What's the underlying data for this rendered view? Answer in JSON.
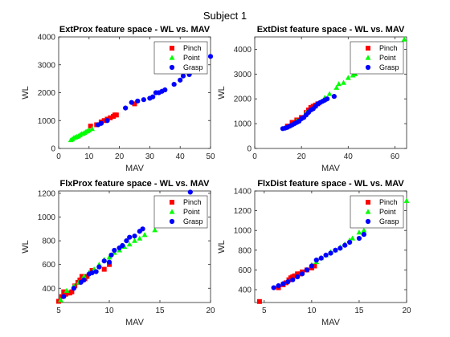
{
  "figure": {
    "title": "Subject 1",
    "colors": {
      "Pinch": "#ff0000",
      "Point": "#00ff00",
      "Grasp": "#0000ff"
    }
  },
  "chart_data": [
    {
      "type": "scatter",
      "title": "ExtProx feature space - WL vs. MAV",
      "xlabel": "MAV",
      "ylabel": "WL",
      "xlim": [
        0,
        50
      ],
      "ylim": [
        0,
        4000
      ],
      "xticks": [
        0,
        10,
        20,
        30,
        40,
        50
      ],
      "yticks": [
        0,
        1000,
        2000,
        3000,
        4000
      ],
      "legend": "top-right",
      "series": [
        {
          "name": "Pinch",
          "marker": "square",
          "points": [
            [
              10.5,
              800
            ],
            [
              12.5,
              850
            ],
            [
              14,
              950
            ],
            [
              15,
              1000
            ],
            [
              16,
              1050
            ],
            [
              17,
              1100
            ],
            [
              18,
              1150
            ],
            [
              18.5,
              1200
            ],
            [
              19,
              1200
            ],
            [
              25,
              1600
            ]
          ]
        },
        {
          "name": "Point",
          "marker": "triangle",
          "points": [
            [
              4,
              300
            ],
            [
              4.5,
              330
            ],
            [
              5,
              380
            ],
            [
              5.5,
              400
            ],
            [
              6,
              420
            ],
            [
              6.5,
              440
            ],
            [
              7,
              480
            ],
            [
              7.5,
              520
            ],
            [
              8,
              530
            ],
            [
              8.5,
              560
            ],
            [
              9,
              600
            ],
            [
              9.5,
              620
            ],
            [
              10,
              650
            ],
            [
              11,
              700
            ]
          ]
        },
        {
          "name": "Grasp",
          "marker": "circle",
          "points": [
            [
              13,
              850
            ],
            [
              14,
              900
            ],
            [
              16,
              1000
            ],
            [
              22,
              1450
            ],
            [
              24,
              1650
            ],
            [
              26,
              1700
            ],
            [
              28,
              1750
            ],
            [
              30,
              1800
            ],
            [
              31,
              1850
            ],
            [
              32,
              2000
            ],
            [
              33,
              2000
            ],
            [
              34,
              2050
            ],
            [
              35,
              2100
            ],
            [
              38,
              2300
            ],
            [
              40,
              2450
            ],
            [
              41,
              2600
            ],
            [
              43,
              2650
            ],
            [
              45,
              2850
            ],
            [
              46,
              2900
            ],
            [
              50,
              3300
            ]
          ]
        }
      ]
    },
    {
      "type": "scatter",
      "title": "ExtDist feature space - WL vs. MAV",
      "xlabel": "MAV",
      "ylabel": "WL",
      "xlim": [
        0,
        65
      ],
      "ylim": [
        0,
        4500
      ],
      "xticks": [
        0,
        20,
        40,
        60
      ],
      "yticks": [
        0,
        1000,
        2000,
        3000,
        4000
      ],
      "legend": "top-right",
      "series": [
        {
          "name": "Pinch",
          "marker": "square",
          "points": [
            [
              14,
              900
            ],
            [
              16,
              1050
            ],
            [
              18,
              1150
            ],
            [
              20,
              1250
            ],
            [
              22,
              1450
            ],
            [
              23,
              1550
            ],
            [
              24,
              1650
            ],
            [
              25,
              1700
            ],
            [
              26,
              1750
            ],
            [
              27,
              1800
            ]
          ]
        },
        {
          "name": "Point",
          "marker": "triangle",
          "points": [
            [
              18,
              1100
            ],
            [
              22,
              1450
            ],
            [
              26,
              1700
            ],
            [
              30,
              2050
            ],
            [
              32,
              2200
            ],
            [
              35,
              2450
            ],
            [
              36,
              2600
            ],
            [
              38,
              2650
            ],
            [
              40,
              2850
            ],
            [
              42,
              2950
            ],
            [
              43,
              3000
            ],
            [
              45,
              3100
            ],
            [
              50,
              3500
            ],
            [
              52,
              3600
            ],
            [
              54,
              3700
            ],
            [
              64,
              4400
            ]
          ]
        },
        {
          "name": "Grasp",
          "marker": "circle",
          "points": [
            [
              12,
              800
            ],
            [
              13,
              820
            ],
            [
              14,
              850
            ],
            [
              15,
              900
            ],
            [
              16,
              950
            ],
            [
              17,
              1000
            ],
            [
              18,
              1050
            ],
            [
              19,
              1100
            ],
            [
              20,
              1200
            ],
            [
              21,
              1250
            ],
            [
              22,
              1350
            ],
            [
              23,
              1450
            ],
            [
              24,
              1550
            ],
            [
              25,
              1600
            ],
            [
              26,
              1700
            ],
            [
              27,
              1800
            ],
            [
              28,
              1850
            ],
            [
              29,
              1900
            ],
            [
              30,
              1950
            ],
            [
              31,
              2000
            ],
            [
              34,
              2100
            ]
          ]
        }
      ]
    },
    {
      "type": "scatter",
      "title": "FlxProx feature space - WL vs. MAV",
      "xlabel": "MAV",
      "ylabel": "WL",
      "xlim": [
        5,
        20
      ],
      "ylim": [
        280,
        1220
      ],
      "xticks": [
        5,
        10,
        15,
        20
      ],
      "yticks": [
        400,
        600,
        800,
        1000,
        1200
      ],
      "legend": "top-right",
      "series": [
        {
          "name": "Pinch",
          "marker": "square",
          "points": [
            [
              5,
              290
            ],
            [
              5.3,
              330
            ],
            [
              5.5,
              370
            ],
            [
              5.7,
              350
            ],
            [
              5.9,
              360
            ],
            [
              6.1,
              360
            ],
            [
              6.3,
              370
            ],
            [
              6.6,
              420
            ],
            [
              6.9,
              450
            ],
            [
              7.1,
              470
            ],
            [
              7.3,
              500
            ],
            [
              7.6,
              480
            ],
            [
              7.8,
              500
            ],
            [
              8.3,
              550
            ],
            [
              9.5,
              560
            ],
            [
              10,
              600
            ]
          ]
        },
        {
          "name": "Point",
          "marker": "triangle",
          "points": [
            [
              5.2,
              300
            ],
            [
              5.8,
              380
            ],
            [
              6.5,
              420
            ],
            [
              7,
              450
            ],
            [
              7.5,
              500
            ],
            [
              8,
              530
            ],
            [
              8.5,
              560
            ],
            [
              9,
              600
            ],
            [
              9.5,
              640
            ],
            [
              10,
              660
            ],
            [
              10.5,
              700
            ],
            [
              11,
              720
            ],
            [
              11.5,
              750
            ],
            [
              12,
              770
            ],
            [
              12.5,
              800
            ],
            [
              13,
              820
            ],
            [
              13.5,
              850
            ],
            [
              14.5,
              890
            ]
          ]
        },
        {
          "name": "Grasp",
          "marker": "circle",
          "points": [
            [
              5.5,
              330
            ],
            [
              6.5,
              400
            ],
            [
              7.2,
              450
            ],
            [
              7.5,
              470
            ],
            [
              8,
              520
            ],
            [
              8.3,
              530
            ],
            [
              8.7,
              540
            ],
            [
              9,
              580
            ],
            [
              9.5,
              630
            ],
            [
              10,
              620
            ],
            [
              10.2,
              680
            ],
            [
              10.5,
              720
            ],
            [
              11,
              740
            ],
            [
              11.3,
              760
            ],
            [
              11.7,
              800
            ],
            [
              12,
              830
            ],
            [
              12.5,
              840
            ],
            [
              13,
              880
            ],
            [
              13.3,
              900
            ],
            [
              18,
              1210
            ]
          ]
        }
      ]
    },
    {
      "type": "scatter",
      "title": "FlxDist feature space - WL vs. MAV",
      "xlabel": "MAV",
      "ylabel": "WL",
      "xlim": [
        4,
        20
      ],
      "ylim": [
        270,
        1400
      ],
      "xticks": [
        5,
        10,
        15,
        20
      ],
      "yticks": [
        400,
        600,
        800,
        1000,
        1200,
        1400
      ],
      "legend": "top-right",
      "series": [
        {
          "name": "Pinch",
          "marker": "square",
          "points": [
            [
              4.5,
              280
            ],
            [
              6.5,
              420
            ],
            [
              7,
              450
            ],
            [
              7.3,
              470
            ],
            [
              7.6,
              500
            ],
            [
              7.8,
              520
            ],
            [
              8,
              530
            ],
            [
              8.2,
              540
            ],
            [
              8.5,
              560
            ],
            [
              8.8,
              560
            ],
            [
              9,
              580
            ],
            [
              9.5,
              600
            ],
            [
              10,
              620
            ],
            [
              10.3,
              640
            ]
          ]
        },
        {
          "name": "Point",
          "marker": "triangle",
          "points": [
            [
              10,
              650
            ],
            [
              10.5,
              680
            ],
            [
              11,
              720
            ],
            [
              11.5,
              750
            ],
            [
              12,
              780
            ],
            [
              12.5,
              800
            ],
            [
              13,
              830
            ],
            [
              13.5,
              860
            ],
            [
              14,
              900
            ],
            [
              14.3,
              920
            ],
            [
              15,
              980
            ],
            [
              15.5,
              1000
            ],
            [
              16,
              1050
            ],
            [
              17,
              1150
            ],
            [
              17.5,
              1200
            ],
            [
              18,
              1250
            ],
            [
              20,
              1300
            ]
          ]
        },
        {
          "name": "Grasp",
          "marker": "circle",
          "points": [
            [
              6,
              420
            ],
            [
              6.5,
              440
            ],
            [
              7,
              460
            ],
            [
              7.5,
              480
            ],
            [
              8,
              500
            ],
            [
              8.5,
              530
            ],
            [
              9,
              560
            ],
            [
              9.5,
              600
            ],
            [
              10,
              640
            ],
            [
              10.5,
              700
            ],
            [
              11,
              720
            ],
            [
              11.5,
              750
            ],
            [
              12,
              770
            ],
            [
              12.5,
              800
            ],
            [
              13,
              820
            ],
            [
              13.5,
              850
            ],
            [
              14,
              880
            ],
            [
              15,
              920
            ],
            [
              15.5,
              960
            ]
          ]
        }
      ]
    }
  ]
}
